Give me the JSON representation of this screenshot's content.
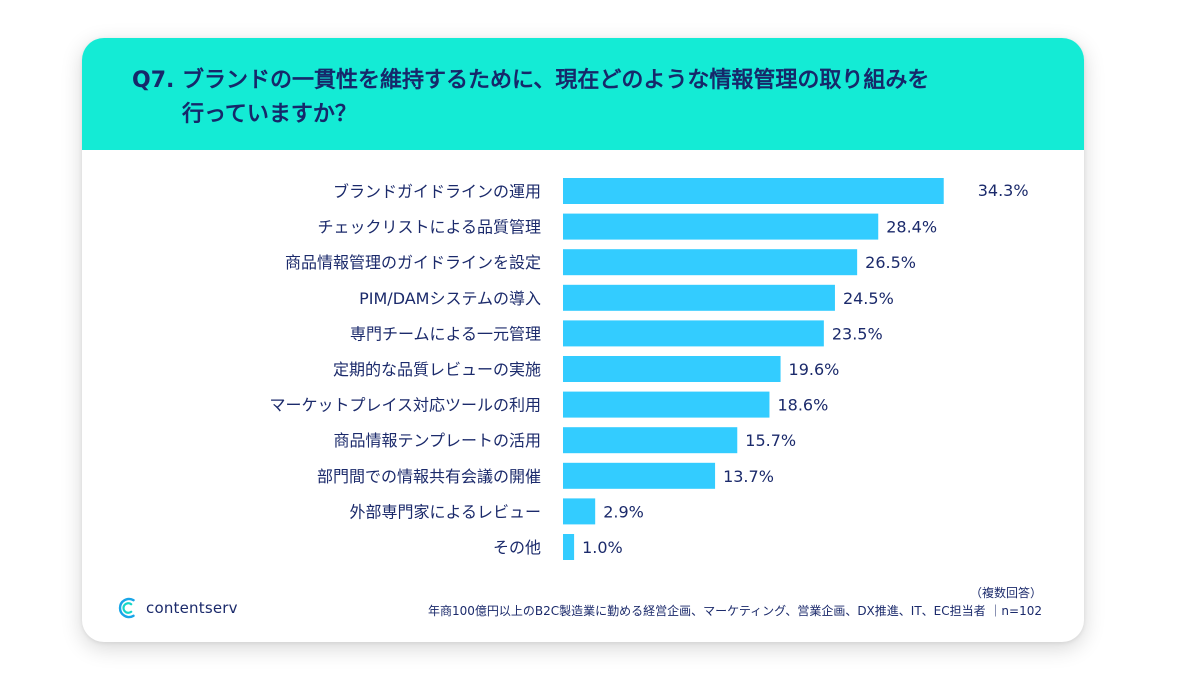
{
  "header": {
    "title_line1": "Q7. ブランドの一貫性を維持するために、現在どのような情報管理の取り組みを",
    "title_line2": "行っていますか？"
  },
  "chart_data": {
    "type": "bar",
    "orientation": "horizontal",
    "categories": [
      "ブランドガイドラインの運用",
      "チェックリストによる品質管理",
      "商品情報管理のガイドラインを設定",
      "PIM/DAMシステムの導入",
      "専門チームによる一元管理",
      "定期的な品質レビューの実施",
      "マーケットプレイス対応ツールの利用",
      "商品情報テンプレートの活用",
      "部門間での情報共有会議の開催",
      "外部専門家によるレビュー",
      "その他"
    ],
    "values": [
      34.3,
      28.4,
      26.5,
      24.5,
      23.5,
      19.6,
      18.6,
      15.7,
      13.7,
      2.9,
      1.0
    ],
    "value_labels": [
      "34.3%",
      "28.4%",
      "26.5%",
      "24.5%",
      "23.5%",
      "19.6%",
      "18.6%",
      "15.7%",
      "13.7%",
      "2.9%",
      "1.0%"
    ],
    "bar_color": "#33ccff",
    "grid": false
  },
  "footer": {
    "logo_text": "contentserv",
    "note_line1": "（複数回答）",
    "note_line2": "年商100億円以上のB2C製造業に勤める経営企画、マーケティング、営業企画、DX推進、IT、EC担当者 ｜n=102"
  },
  "colors": {
    "header_bg": "#14ebd5",
    "title_text": "#16286a",
    "bar": "#33ccff",
    "text": "#1b2a6b"
  }
}
